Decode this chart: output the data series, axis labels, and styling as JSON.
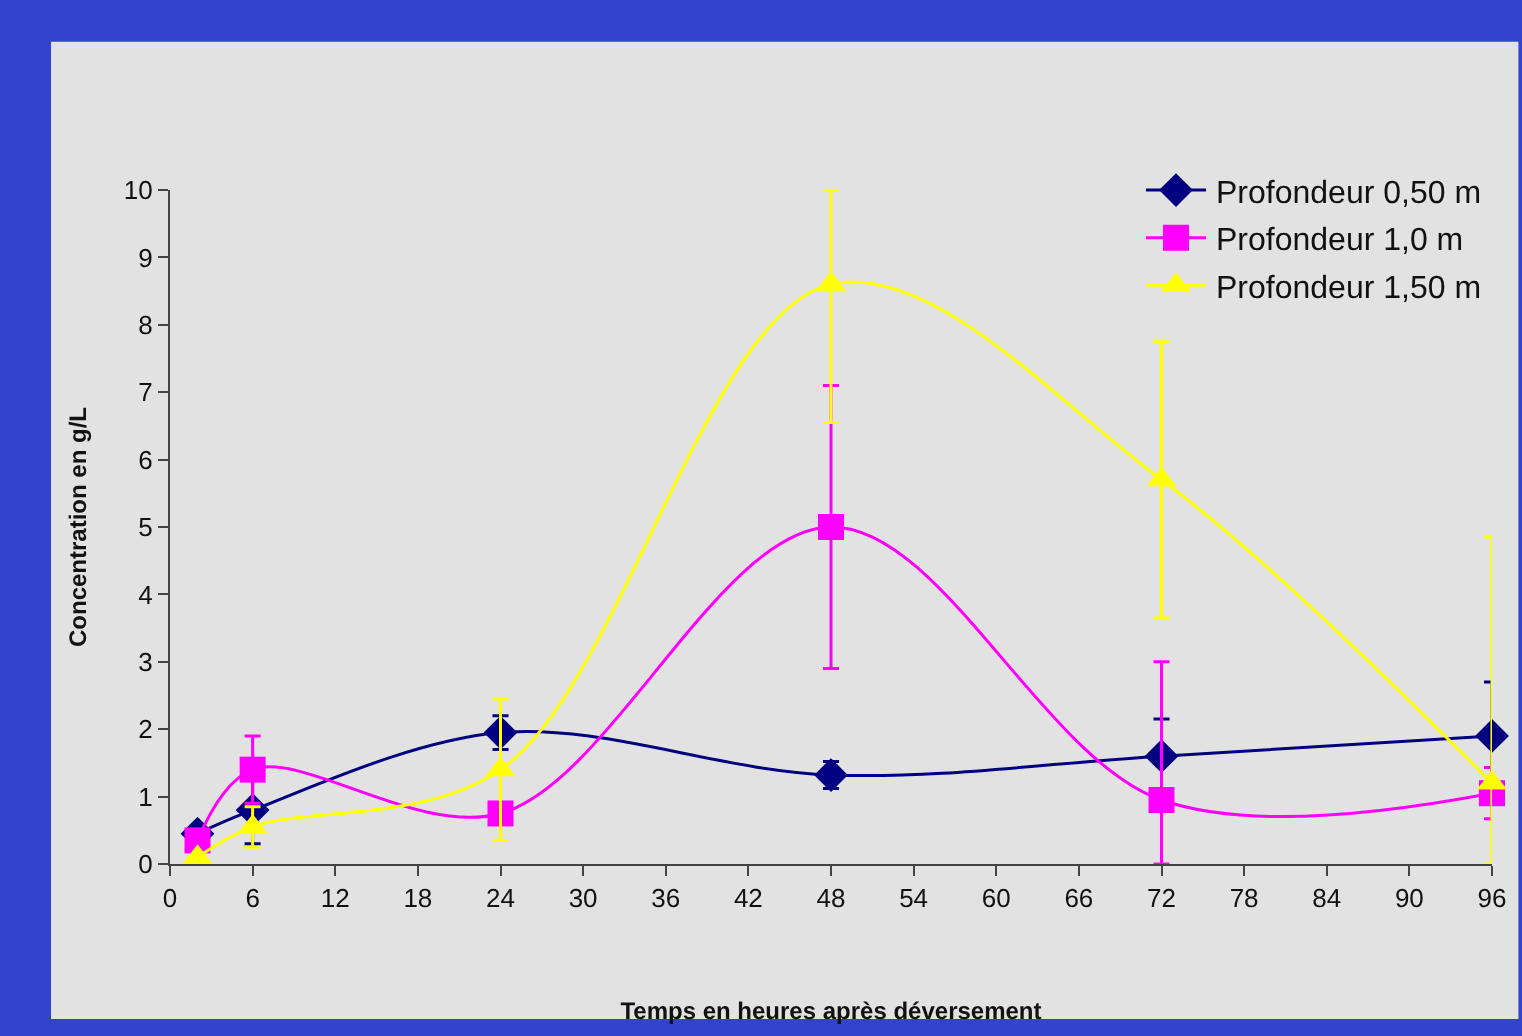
{
  "chart_data": {
    "type": "line",
    "xlabel": "Temps en heures après déversement",
    "ylabel": "Concentration en g/L",
    "x": [
      2,
      6,
      24,
      48,
      72,
      96
    ],
    "series": [
      {
        "name": "Profondeur 0,50 m",
        "color": "#000080",
        "marker": "diamond",
        "values": [
          0.45,
          0.8,
          1.95,
          1.32,
          1.6,
          1.9
        ],
        "errors": [
          null,
          0.5,
          0.25,
          0.2,
          0.55,
          0.8
        ]
      },
      {
        "name": "Profondeur 1,0 m",
        "color": "#ff00ff",
        "marker": "square",
        "values": [
          0.35,
          1.4,
          0.75,
          5.0,
          0.95,
          1.05
        ],
        "errors": [
          null,
          0.5,
          null,
          2.1,
          [
            0,
            3.0
          ],
          0.38
        ]
      },
      {
        "name": "Profondeur 1,50 m",
        "color": "#ffff00",
        "marker": "triangle",
        "values": [
          0.1,
          0.55,
          1.4,
          8.6,
          5.7,
          1.2
        ],
        "errors": [
          null,
          0.3,
          1.05,
          [
            6.55,
            10
          ],
          2.05,
          [
            0,
            4.85
          ]
        ]
      }
    ],
    "xlim": [
      0,
      96
    ],
    "xticks": [
      0,
      6,
      12,
      18,
      24,
      30,
      36,
      42,
      48,
      54,
      60,
      66,
      72,
      78,
      84,
      90,
      96
    ],
    "ylim": [
      0,
      10
    ],
    "yticks": [
      0,
      1,
      2,
      3,
      4,
      5,
      6,
      7,
      8,
      9,
      10
    ],
    "grid": false,
    "legend": "top right",
    "line_style": "solid"
  }
}
